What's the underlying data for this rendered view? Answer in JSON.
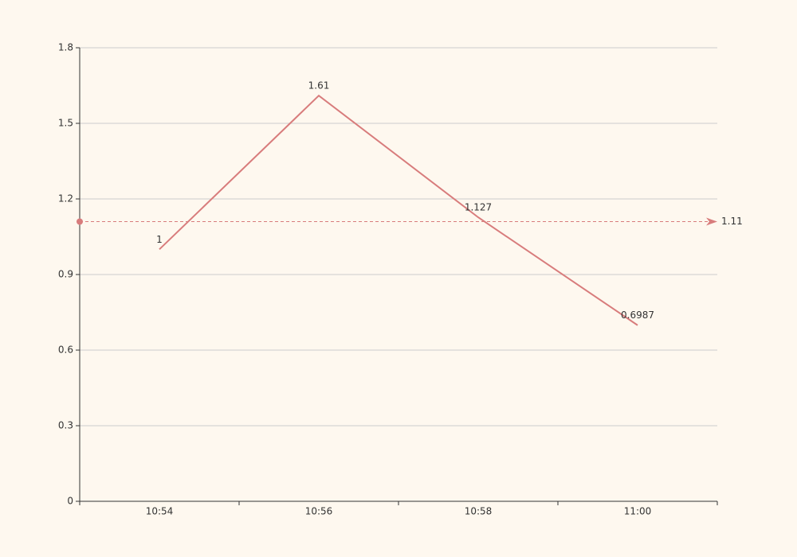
{
  "chart_data": {
    "type": "line",
    "categories": [
      "10:54",
      "10:56",
      "10:58",
      "11:00"
    ],
    "series": [
      {
        "color": "#d87c7c",
        "values": [
          1,
          1.61,
          1.127,
          0.6987
        ]
      }
    ],
    "ylim": [
      0,
      1.8
    ],
    "yticks": [
      0,
      0.3,
      0.6,
      0.9,
      1.2,
      1.5,
      1.8
    ],
    "grid": true,
    "mark_line": {
      "value": 1.11,
      "color": "#d87c7c"
    }
  }
}
